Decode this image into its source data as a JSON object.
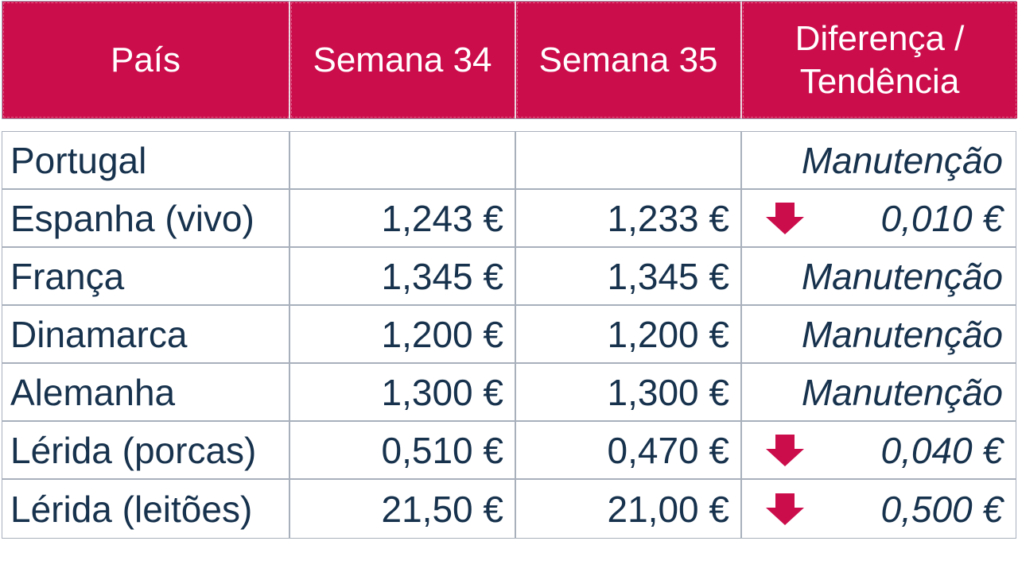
{
  "table": {
    "headers": [
      "País",
      "Semana 34",
      "Semana 35",
      "Diferença / Tendência"
    ],
    "header_diff_lines": [
      "Diferença /",
      "Tendência"
    ],
    "rows": [
      {
        "country": "Portugal",
        "w34": "",
        "w35": "",
        "diff": "Manutenção",
        "trend": "none"
      },
      {
        "country": "Espanha (vivo)",
        "w34": "1,243 €",
        "w35": "1,233 €",
        "diff": "0,010 €",
        "trend": "down"
      },
      {
        "country": "França",
        "w34": "1,345 €",
        "w35": "1,345 €",
        "diff": "Manutenção",
        "trend": "none"
      },
      {
        "country": "Dinamarca",
        "w34": "1,200 €",
        "w35": "1,200 €",
        "diff": "Manutenção",
        "trend": "none"
      },
      {
        "country": "Alemanha",
        "w34": "1,300 €",
        "w35": "1,300 €",
        "diff": "Manutenção",
        "trend": "none"
      },
      {
        "country": "Lérida (porcas)",
        "w34": "0,510 €",
        "w35": "0,470 €",
        "diff": "0,040 €",
        "trend": "down"
      },
      {
        "country": "Lérida (leitões)",
        "w34": "21,50 €",
        "w35": "21,00 €",
        "diff": "0,500 €",
        "trend": "down"
      }
    ]
  },
  "colors": {
    "header_bg": "#cc0d4c",
    "header_text": "#ffffff",
    "body_text": "#17324d",
    "arrow": "#cc0d4c",
    "border": "#a8b0bc"
  },
  "icons": {
    "down_trend": "arrow-down-icon"
  }
}
